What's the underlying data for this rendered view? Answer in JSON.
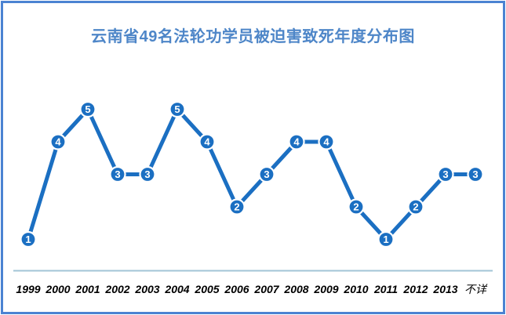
{
  "chart_data": {
    "type": "line",
    "title": "云南省49名法轮功学员被迫害致死年度分布图",
    "categories": [
      "1999",
      "2000",
      "2001",
      "2002",
      "2003",
      "2004",
      "2005",
      "2006",
      "2007",
      "2008",
      "2009",
      "2010",
      "2011",
      "2012",
      "2013",
      "不详"
    ],
    "values": [
      1,
      4,
      5,
      3,
      3,
      5,
      4,
      2,
      3,
      4,
      4,
      2,
      1,
      2,
      3,
      3
    ],
    "total": 49,
    "xlabel": "",
    "ylabel": "",
    "ylim": [
      0,
      6
    ],
    "grid": false,
    "legend": "none",
    "data_labels": "inside-markers",
    "x_axis_visible": true,
    "y_axis_visible": false,
    "colors": {
      "line": "#1b6fc2",
      "marker_fill": "#1b6fc2",
      "marker_ring": "#ffffff",
      "marker_text": "#ffffff",
      "axis_line": "#a2c4d6",
      "title_text": "#4e86c8",
      "frame_border": "#4b83d2",
      "tick_text": "#000000",
      "background": "#ffffff"
    }
  }
}
